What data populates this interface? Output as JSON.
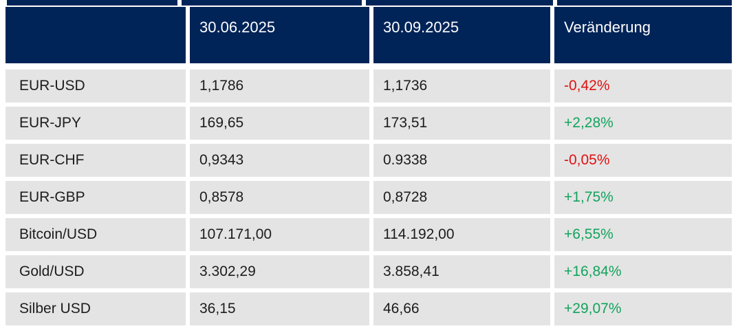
{
  "table": {
    "title": "currency-and-commodity-prices",
    "columns": {
      "col1": "",
      "col2": "30.06.2025",
      "col3": "30.09.2025",
      "col4": "Veränderung"
    },
    "rows": [
      {
        "label": "EUR-USD",
        "value_1": "1,1786",
        "value_2": "1,1736",
        "change": "-0,42%",
        "direction": "down"
      },
      {
        "label": "EUR-JPY",
        "value_1": "169,65",
        "value_2": "173,51",
        "change": "+2,28%",
        "direction": "up"
      },
      {
        "label": "EUR-CHF",
        "value_1": "0,9343",
        "value_2": "0.9338",
        "change": "-0,05%",
        "direction": "down"
      },
      {
        "label": "EUR-GBP",
        "value_1": "0,8578",
        "value_2": "0,8728",
        "change": "+1,75%",
        "direction": "up"
      },
      {
        "label": "Bitcoin/USD",
        "value_1": "107.171,00",
        "value_2": "114.192,00",
        "change": "+6,55%",
        "direction": "up"
      },
      {
        "label": "Gold/USD",
        "value_1": "3.302,29",
        "value_2": "3.858,41",
        "change": "+16,84%",
        "direction": "up"
      },
      {
        "label": "Silber USD",
        "value_1": "36,15",
        "value_2": "46,66",
        "change": "+29,07%",
        "direction": "up"
      }
    ]
  },
  "colors": {
    "header_bg": "#012458",
    "header_text": "#ffffff",
    "row_bg": "#e4e4e4",
    "body_text": "#1c1c1c",
    "positive": "#12a35c",
    "negative": "#e01111"
  }
}
